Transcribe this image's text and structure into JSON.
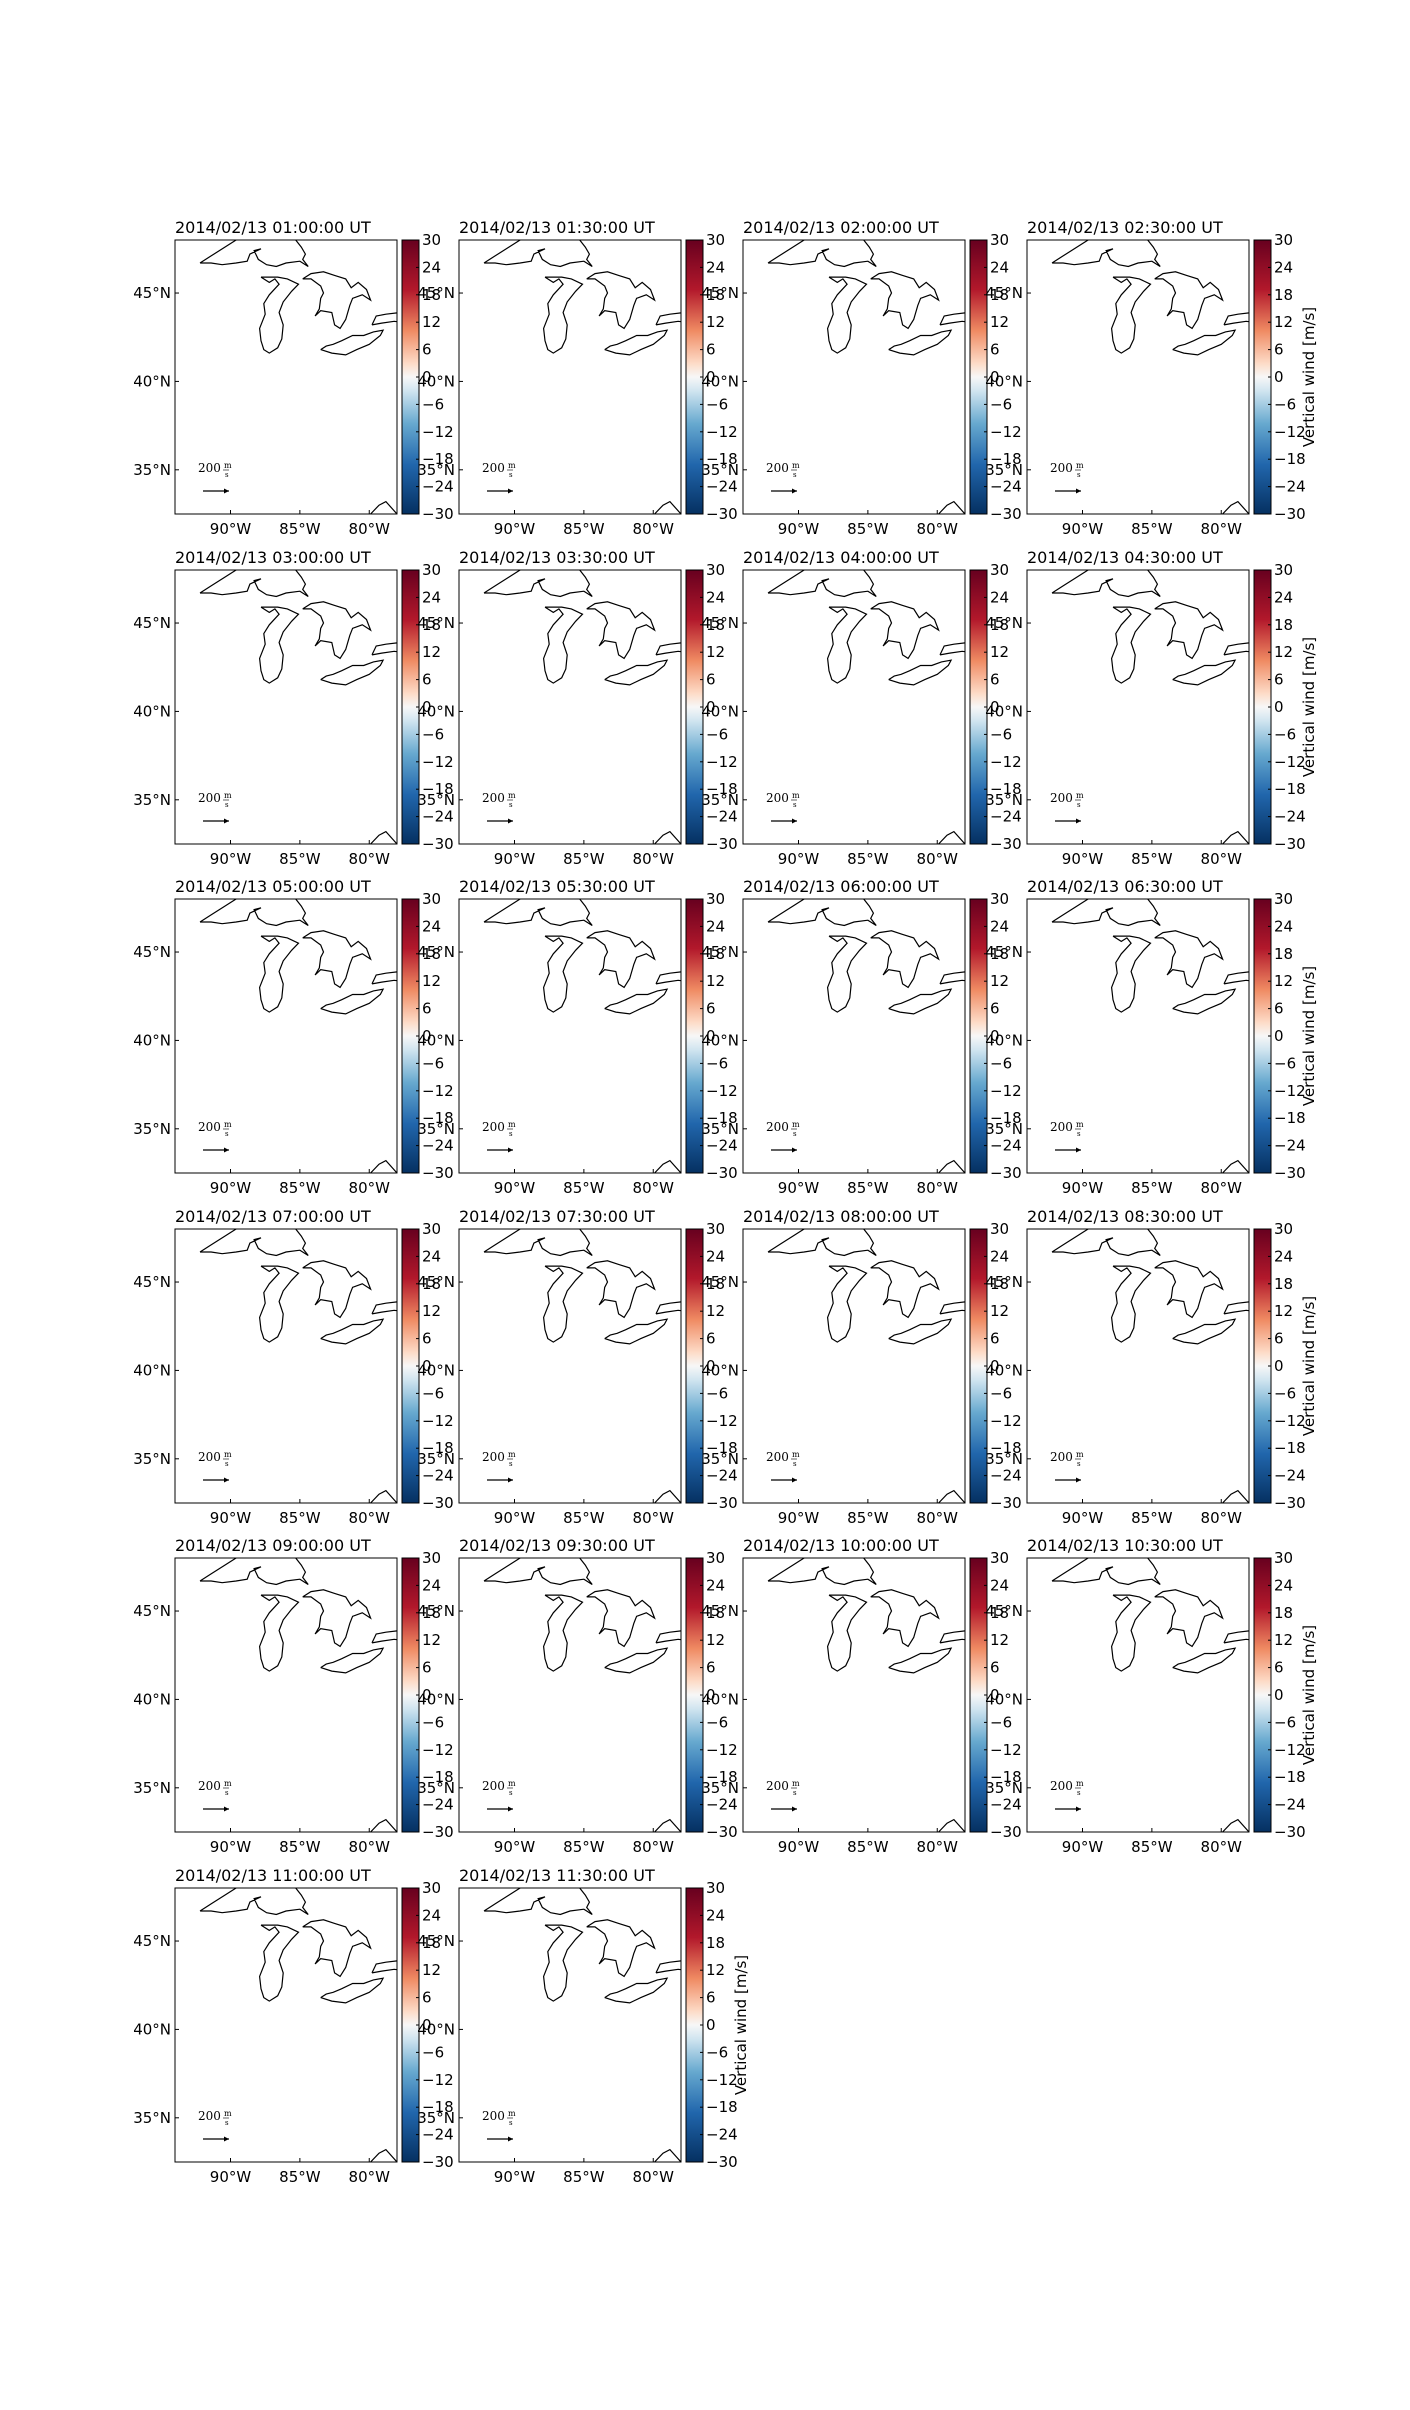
{
  "figure": {
    "panel_titles": [
      "2014/02/13 01:00:00 UT",
      "2014/02/13 01:30:00 UT",
      "2014/02/13 02:00:00 UT",
      "2014/02/13 02:30:00 UT",
      "2014/02/13 03:00:00 UT",
      "2014/02/13 03:30:00 UT",
      "2014/02/13 04:00:00 UT",
      "2014/02/13 04:30:00 UT",
      "2014/02/13 05:00:00 UT",
      "2014/02/13 05:30:00 UT",
      "2014/02/13 06:00:00 UT",
      "2014/02/13 06:30:00 UT",
      "2014/02/13 07:00:00 UT",
      "2014/02/13 07:30:00 UT",
      "2014/02/13 08:00:00 UT",
      "2014/02/13 08:30:00 UT",
      "2014/02/13 09:00:00 UT",
      "2014/02/13 09:30:00 UT",
      "2014/02/13 10:00:00 UT",
      "2014/02/13 10:30:00 UT",
      "2014/02/13 11:00:00 UT",
      "2014/02/13 11:30:00 UT"
    ],
    "colorbar_label": "Vertical wind [m/s]",
    "colorbar_label_panels": [
      4,
      8,
      12,
      16,
      20,
      22
    ],
    "quiver_key": {
      "value": "200",
      "unit_num": "m",
      "unit_den": "s"
    },
    "colormap": {
      "name": "RdBu_r",
      "low": "#053061",
      "mid": "#f7f7f7",
      "high": "#67001f"
    }
  },
  "chart_data": {
    "type": "map",
    "panels": 22,
    "layout": {
      "rows": 6,
      "cols": 4
    },
    "lon_ticks": [
      -90,
      -85,
      -80
    ],
    "lon_tick_labels": [
      "90°W",
      "85°W",
      "80°W"
    ],
    "lat_ticks": [
      35,
      40,
      45
    ],
    "lat_tick_labels": [
      "35°N",
      "40°N",
      "45°N"
    ],
    "lon_range": [
      -94,
      -78
    ],
    "lat_range": [
      32.5,
      48
    ],
    "colorbar": {
      "vmin": -30,
      "vmax": 30,
      "ticks": [
        30,
        24,
        18,
        12,
        6,
        0,
        -6,
        -12,
        -18,
        -24,
        -30
      ],
      "tick_labels": [
        "30",
        "24",
        "18",
        "12",
        "6",
        "0",
        "−6",
        "−12",
        "−18",
        "−24",
        "−30"
      ]
    },
    "vectors": []
  }
}
